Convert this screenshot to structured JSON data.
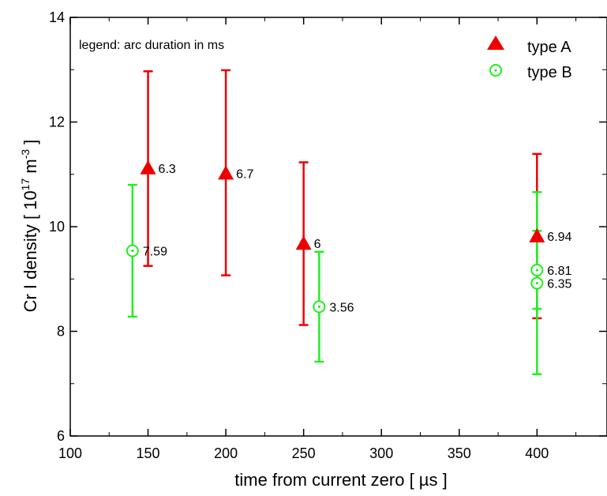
{
  "chart_data": {
    "type": "scatter",
    "xlabel": "time from current zero [ µs ]",
    "ylabel": {
      "prefix": "Cr I density [ 10",
      "exp1": "17",
      "mid": " m",
      "exp2": "-3",
      "suffix": " ]"
    },
    "xlim": [
      100,
      445
    ],
    "ylim": [
      6,
      14
    ],
    "x_ticks": [
      100,
      150,
      200,
      250,
      300,
      350,
      400
    ],
    "y_ticks": [
      6,
      8,
      10,
      12,
      14
    ],
    "grid": false,
    "legend_position": "top-right",
    "note": "legend: arc duration in ms",
    "colors": {
      "type_a": "#ee0000",
      "type_b": "#22ee22"
    },
    "series": [
      {
        "name": "type A",
        "marker": "filled-triangle",
        "color": "#ee0000",
        "points": [
          {
            "x": 150,
            "y": 11.12,
            "err_low": 9.25,
            "err_high": 12.97,
            "label": "6.3"
          },
          {
            "x": 200,
            "y": 11.02,
            "err_low": 9.07,
            "err_high": 12.99,
            "label": "6.7"
          },
          {
            "x": 250,
            "y": 9.68,
            "err_low": 8.12,
            "err_high": 11.23,
            "label": "6"
          },
          {
            "x": 400,
            "y": 9.82,
            "err_low": 8.25,
            "err_high": 11.39,
            "label": "6.94"
          }
        ]
      },
      {
        "name": "type B",
        "marker": "open-circle-dot",
        "color": "#22ee22",
        "points": [
          {
            "x": 140,
            "y": 9.54,
            "err_low": 8.28,
            "err_high": 10.8,
            "label": "7.59"
          },
          {
            "x": 260,
            "y": 8.47,
            "err_low": 7.42,
            "err_high": 9.52,
            "label": "3.56"
          },
          {
            "x": 400,
            "y": 9.17,
            "err_low": 8.43,
            "err_high": 9.92,
            "label": "6.81"
          },
          {
            "x": 400,
            "y": 8.92,
            "err_low": 7.18,
            "err_high": 10.66,
            "label": "6.35"
          }
        ]
      }
    ]
  }
}
